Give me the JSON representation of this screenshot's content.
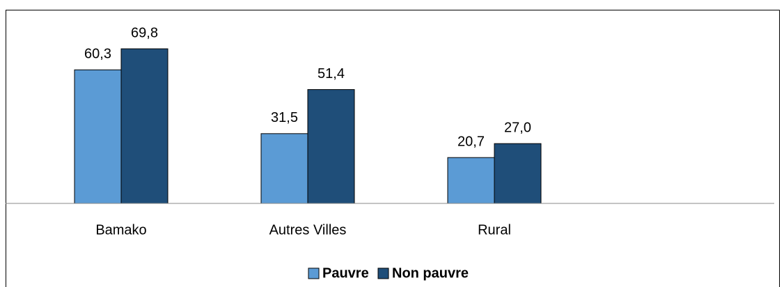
{
  "chart_data": {
    "type": "bar",
    "categories": [
      "Bamako",
      "Autres Villes",
      "Rural"
    ],
    "series": [
      {
        "name": "Pauvre",
        "color": "#5b9bd5",
        "values": [
          60.3,
          31.5,
          20.7
        ],
        "value_labels": [
          "60,3",
          "31,5",
          "20,7"
        ]
      },
      {
        "name": "Non pauvre",
        "color": "#1f4e79",
        "values": [
          69.8,
          51.4,
          27.0
        ],
        "value_labels": [
          "69,8",
          "51,4",
          "27,0"
        ]
      }
    ],
    "ylim": [
      0,
      80
    ],
    "legend": "bottom"
  }
}
